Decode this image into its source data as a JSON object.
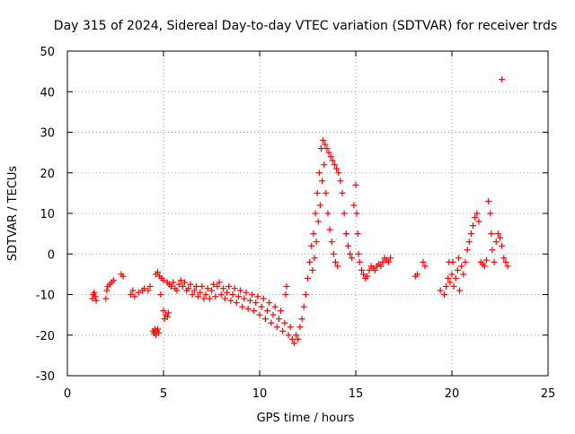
{
  "chart_data": {
    "type": "scatter",
    "title": "Day 315 of 2024, Sidereal Day-to-day VTEC variation (SDTVAR) for receiver trds",
    "xlabel": "GPS time / hours",
    "ylabel": "SDTVAR / TECUs",
    "xlim": [
      0,
      25
    ],
    "ylim": [
      -30,
      50
    ],
    "x_ticks": [
      "0",
      "5",
      "10",
      "15",
      "20",
      "25"
    ],
    "y_ticks": [
      "-30",
      "-20",
      "-10",
      "0",
      "10",
      "20",
      "30",
      "40",
      "50"
    ],
    "grid": true,
    "marker": "+",
    "color": "#ff0000",
    "series": [
      {
        "name": "SDTVAR",
        "points": [
          [
            1.3,
            -11
          ],
          [
            1.35,
            -10
          ],
          [
            1.4,
            -9.5
          ],
          [
            1.45,
            -10.5
          ],
          [
            1.5,
            -11.5
          ],
          [
            2.0,
            -11
          ],
          [
            2.05,
            -9
          ],
          [
            2.1,
            -8
          ],
          [
            2.2,
            -7.5
          ],
          [
            2.3,
            -7
          ],
          [
            2.4,
            -6.5
          ],
          [
            2.8,
            -5
          ],
          [
            2.9,
            -5.5
          ],
          [
            3.3,
            -10
          ],
          [
            3.4,
            -9
          ],
          [
            3.5,
            -10.5
          ],
          [
            3.7,
            -9.5
          ],
          [
            3.9,
            -9
          ],
          [
            4.0,
            -8.5
          ],
          [
            4.2,
            -9
          ],
          [
            4.3,
            -8
          ],
          [
            4.45,
            -19
          ],
          [
            4.5,
            -19.5
          ],
          [
            4.55,
            -18.5
          ],
          [
            4.6,
            -20
          ],
          [
            4.65,
            -19
          ],
          [
            4.7,
            -18.5
          ],
          [
            4.75,
            -19.5
          ],
          [
            4.6,
            -5
          ],
          [
            4.7,
            -4.5
          ],
          [
            4.8,
            -5.5
          ],
          [
            4.85,
            -10
          ],
          [
            4.9,
            -6
          ],
          [
            5.0,
            -6.5
          ],
          [
            5.0,
            -14
          ],
          [
            5.05,
            -16
          ],
          [
            5.1,
            -15
          ],
          [
            5.2,
            -15.5
          ],
          [
            5.25,
            -14.5
          ],
          [
            5.2,
            -7
          ],
          [
            5.3,
            -7.5
          ],
          [
            5.4,
            -8
          ],
          [
            5.5,
            -7
          ],
          [
            5.6,
            -8.5
          ],
          [
            5.7,
            -9
          ],
          [
            5.8,
            -7.5
          ],
          [
            5.9,
            -6.5
          ],
          [
            6.0,
            -8
          ],
          [
            6.1,
            -7
          ],
          [
            6.2,
            -9
          ],
          [
            6.3,
            -8.5
          ],
          [
            6.4,
            -7.5
          ],
          [
            6.5,
            -10
          ],
          [
            6.6,
            -9
          ],
          [
            6.7,
            -8
          ],
          [
            6.8,
            -10.5
          ],
          [
            6.9,
            -9.5
          ],
          [
            7.0,
            -8
          ],
          [
            7.1,
            -11
          ],
          [
            7.2,
            -10
          ],
          [
            7.3,
            -8.5
          ],
          [
            7.4,
            -11
          ],
          [
            7.5,
            -9
          ],
          [
            7.6,
            -7.5
          ],
          [
            7.7,
            -10.5
          ],
          [
            7.8,
            -8
          ],
          [
            7.9,
            -7
          ],
          [
            8.0,
            -10
          ],
          [
            8.1,
            -8.5
          ],
          [
            8.2,
            -11
          ],
          [
            8.3,
            -9.5
          ],
          [
            8.4,
            -8
          ],
          [
            8.5,
            -11.5
          ],
          [
            8.6,
            -10
          ],
          [
            8.7,
            -8.5
          ],
          [
            8.8,
            -12
          ],
          [
            8.9,
            -10.5
          ],
          [
            9.0,
            -9
          ],
          [
            9.1,
            -13
          ],
          [
            9.2,
            -11
          ],
          [
            9.3,
            -9.5
          ],
          [
            9.4,
            -13.5
          ],
          [
            9.5,
            -11.5
          ],
          [
            9.6,
            -10
          ],
          [
            9.7,
            -14
          ],
          [
            9.8,
            -12
          ],
          [
            9.9,
            -10.5
          ],
          [
            10.0,
            -15
          ],
          [
            10.1,
            -13
          ],
          [
            10.2,
            -11
          ],
          [
            10.3,
            -16
          ],
          [
            10.4,
            -14
          ],
          [
            10.5,
            -12
          ],
          [
            10.6,
            -17
          ],
          [
            10.7,
            -15
          ],
          [
            10.8,
            -13
          ],
          [
            10.9,
            -18
          ],
          [
            11.0,
            -16
          ],
          [
            11.1,
            -14
          ],
          [
            11.2,
            -19
          ],
          [
            11.3,
            -17
          ],
          [
            11.35,
            -10
          ],
          [
            11.4,
            -8
          ],
          [
            11.5,
            -20
          ],
          [
            11.6,
            -18
          ],
          [
            11.7,
            -21
          ],
          [
            11.8,
            -22
          ],
          [
            11.9,
            -20
          ],
          [
            12.0,
            -21
          ],
          [
            12.1,
            -18
          ],
          [
            12.2,
            -16
          ],
          [
            12.3,
            -13
          ],
          [
            12.4,
            -10
          ],
          [
            12.5,
            -6
          ],
          [
            12.6,
            -2
          ],
          [
            12.7,
            2
          ],
          [
            12.75,
            -4
          ],
          [
            12.8,
            5
          ],
          [
            12.85,
            -1
          ],
          [
            12.9,
            10
          ],
          [
            12.95,
            3
          ],
          [
            13.0,
            15
          ],
          [
            13.05,
            8
          ],
          [
            13.1,
            20
          ],
          [
            13.15,
            12
          ],
          [
            13.2,
            26
          ],
          [
            13.25,
            18
          ],
          [
            13.3,
            28
          ],
          [
            13.35,
            22
          ],
          [
            13.4,
            27
          ],
          [
            13.45,
            15
          ],
          [
            13.5,
            26
          ],
          [
            13.55,
            10
          ],
          [
            13.6,
            25
          ],
          [
            13.65,
            6
          ],
          [
            13.7,
            24
          ],
          [
            13.75,
            3
          ],
          [
            13.8,
            23
          ],
          [
            13.85,
            0
          ],
          [
            13.9,
            22
          ],
          [
            13.95,
            -2
          ],
          [
            14.0,
            21
          ],
          [
            14.05,
            -3
          ],
          [
            14.1,
            20
          ],
          [
            14.2,
            18
          ],
          [
            14.3,
            15
          ],
          [
            14.4,
            10
          ],
          [
            14.5,
            5
          ],
          [
            14.6,
            2
          ],
          [
            14.7,
            0
          ],
          [
            14.8,
            -1
          ],
          [
            14.9,
            12
          ],
          [
            15.0,
            17
          ],
          [
            15.05,
            10
          ],
          [
            15.1,
            5
          ],
          [
            15.15,
            0
          ],
          [
            15.2,
            -2
          ],
          [
            15.3,
            -4
          ],
          [
            15.4,
            -5
          ],
          [
            15.5,
            -6
          ],
          [
            15.6,
            -5.5
          ],
          [
            15.7,
            -4
          ],
          [
            15.8,
            -3
          ],
          [
            15.9,
            -3.5
          ],
          [
            16.0,
            -4
          ],
          [
            16.1,
            -3
          ],
          [
            16.2,
            -2.5
          ],
          [
            16.3,
            -3
          ],
          [
            16.4,
            -2
          ],
          [
            16.5,
            -1
          ],
          [
            16.6,
            -1.5
          ],
          [
            16.7,
            -2
          ],
          [
            16.8,
            -1
          ],
          [
            18.1,
            -5.5
          ],
          [
            18.2,
            -5
          ],
          [
            18.5,
            -2
          ],
          [
            18.6,
            -3
          ],
          [
            19.4,
            -9
          ],
          [
            19.6,
            -10
          ],
          [
            19.7,
            -8
          ],
          [
            19.8,
            -6
          ],
          [
            19.85,
            -2
          ],
          [
            19.9,
            -7
          ],
          [
            20.0,
            -5
          ],
          [
            20.05,
            -2
          ],
          [
            20.1,
            -8
          ],
          [
            20.2,
            -6
          ],
          [
            20.3,
            -4
          ],
          [
            20.35,
            -1
          ],
          [
            20.4,
            -9
          ],
          [
            20.5,
            -3
          ],
          [
            20.6,
            -5
          ],
          [
            20.7,
            -2
          ],
          [
            20.8,
            1
          ],
          [
            20.9,
            3
          ],
          [
            21.0,
            5
          ],
          [
            21.1,
            7
          ],
          [
            21.2,
            9
          ],
          [
            21.3,
            10
          ],
          [
            21.4,
            8
          ],
          [
            21.5,
            -2
          ],
          [
            21.6,
            -2.5
          ],
          [
            21.7,
            -3
          ],
          [
            21.8,
            -1.5
          ],
          [
            21.9,
            13
          ],
          [
            22.0,
            10
          ],
          [
            22.05,
            5
          ],
          [
            22.1,
            1
          ],
          [
            22.2,
            -2
          ],
          [
            22.3,
            3
          ],
          [
            22.4,
            5
          ],
          [
            22.5,
            4
          ],
          [
            22.6,
            2
          ],
          [
            22.7,
            -1
          ],
          [
            22.8,
            -2
          ],
          [
            22.9,
            -3
          ],
          [
            22.6,
            43
          ]
        ]
      }
    ]
  }
}
